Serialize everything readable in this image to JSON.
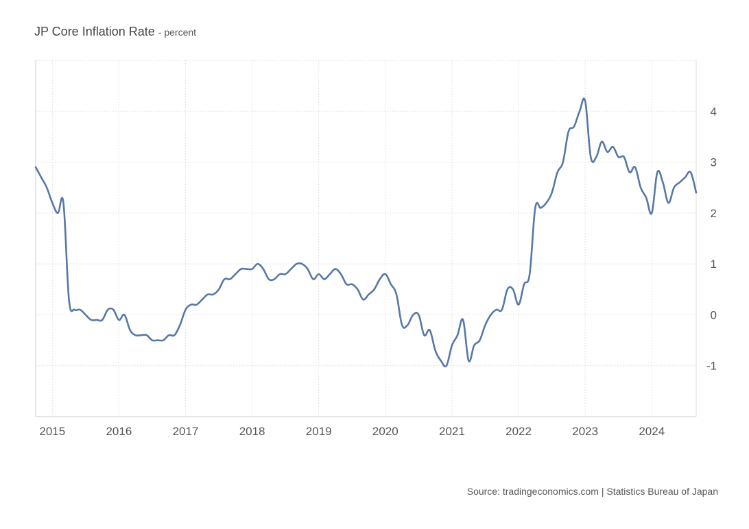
{
  "header": {
    "title": "JP Core Inflation Rate",
    "subtitle": "- percent"
  },
  "footer": {
    "source": "Source: tradingeconomics.com | Statistics Bureau of Japan"
  },
  "colors": {
    "line": "#5578a6",
    "grid": "#e2e2e2",
    "text": "#555555"
  },
  "chart_data": {
    "type": "line",
    "title": "JP Core Inflation Rate",
    "subtitle": "- percent",
    "xlabel": "",
    "ylabel": "",
    "x_ticks": [
      "2015",
      "2016",
      "2017",
      "2018",
      "2019",
      "2020",
      "2021",
      "2022",
      "2023",
      "2024"
    ],
    "y_ticks": [
      -1,
      0,
      1,
      2,
      3,
      4
    ],
    "ylim": [
      -2,
      5
    ],
    "xlim": [
      "2014-10",
      "2024-09"
    ],
    "grid": true,
    "y_axis_side": "right",
    "series": [
      {
        "x": [
          "2014-10",
          "2014-11",
          "2014-12",
          "2015-01",
          "2015-02",
          "2015-03",
          "2015-04",
          "2015-05",
          "2015-06",
          "2015-07",
          "2015-08",
          "2015-09",
          "2015-10",
          "2015-11",
          "2015-12",
          "2016-01",
          "2016-02",
          "2016-03",
          "2016-04",
          "2016-05",
          "2016-06",
          "2016-07",
          "2016-08",
          "2016-09",
          "2016-10",
          "2016-11",
          "2016-12",
          "2017-01",
          "2017-02",
          "2017-03",
          "2017-04",
          "2017-05",
          "2017-06",
          "2017-07",
          "2017-08",
          "2017-09",
          "2017-10",
          "2017-11",
          "2017-12",
          "2018-01",
          "2018-02",
          "2018-03",
          "2018-04",
          "2018-05",
          "2018-06",
          "2018-07",
          "2018-08",
          "2018-09",
          "2018-10",
          "2018-11",
          "2018-12",
          "2019-01",
          "2019-02",
          "2019-03",
          "2019-04",
          "2019-05",
          "2019-06",
          "2019-07",
          "2019-08",
          "2019-09",
          "2019-10",
          "2019-11",
          "2019-12",
          "2020-01",
          "2020-02",
          "2020-03",
          "2020-04",
          "2020-05",
          "2020-06",
          "2020-07",
          "2020-08",
          "2020-09",
          "2020-10",
          "2020-11",
          "2020-12",
          "2021-01",
          "2021-02",
          "2021-03",
          "2021-04",
          "2021-05",
          "2021-06",
          "2021-07",
          "2021-08",
          "2021-09",
          "2021-10",
          "2021-11",
          "2021-12",
          "2022-01",
          "2022-02",
          "2022-03",
          "2022-04",
          "2022-05",
          "2022-06",
          "2022-07",
          "2022-08",
          "2022-09",
          "2022-10",
          "2022-11",
          "2022-12",
          "2023-01",
          "2023-02",
          "2023-03",
          "2023-04",
          "2023-05",
          "2023-06",
          "2023-07",
          "2023-08",
          "2023-09",
          "2023-10",
          "2023-11",
          "2023-12",
          "2024-01",
          "2024-02",
          "2024-03",
          "2024-04",
          "2024-05",
          "2024-06",
          "2024-07",
          "2024-08",
          "2024-09"
        ],
        "values": [
          2.9,
          2.7,
          2.5,
          2.2,
          2.0,
          2.2,
          0.3,
          0.1,
          0.1,
          0.0,
          -0.1,
          -0.1,
          -0.1,
          0.1,
          0.1,
          -0.1,
          0.0,
          -0.3,
          -0.4,
          -0.4,
          -0.4,
          -0.5,
          -0.5,
          -0.5,
          -0.4,
          -0.4,
          -0.2,
          0.1,
          0.2,
          0.2,
          0.3,
          0.4,
          0.4,
          0.5,
          0.7,
          0.7,
          0.8,
          0.9,
          0.9,
          0.9,
          1.0,
          0.9,
          0.7,
          0.7,
          0.8,
          0.8,
          0.9,
          1.0,
          1.0,
          0.9,
          0.7,
          0.8,
          0.7,
          0.8,
          0.9,
          0.8,
          0.6,
          0.6,
          0.5,
          0.3,
          0.4,
          0.5,
          0.7,
          0.8,
          0.6,
          0.4,
          -0.2,
          -0.2,
          0.0,
          0.0,
          -0.4,
          -0.3,
          -0.7,
          -0.9,
          -1.0,
          -0.6,
          -0.4,
          -0.1,
          -0.9,
          -0.6,
          -0.5,
          -0.2,
          0.0,
          0.1,
          0.1,
          0.5,
          0.5,
          0.2,
          0.6,
          0.8,
          2.1,
          2.1,
          2.2,
          2.4,
          2.8,
          3.0,
          3.6,
          3.7,
          4.0,
          4.2,
          3.1,
          3.1,
          3.4,
          3.2,
          3.3,
          3.1,
          3.1,
          2.8,
          2.9,
          2.5,
          2.3,
          2.0,
          2.8,
          2.6,
          2.2,
          2.5,
          2.6,
          2.7,
          2.8,
          2.4
        ]
      }
    ]
  }
}
